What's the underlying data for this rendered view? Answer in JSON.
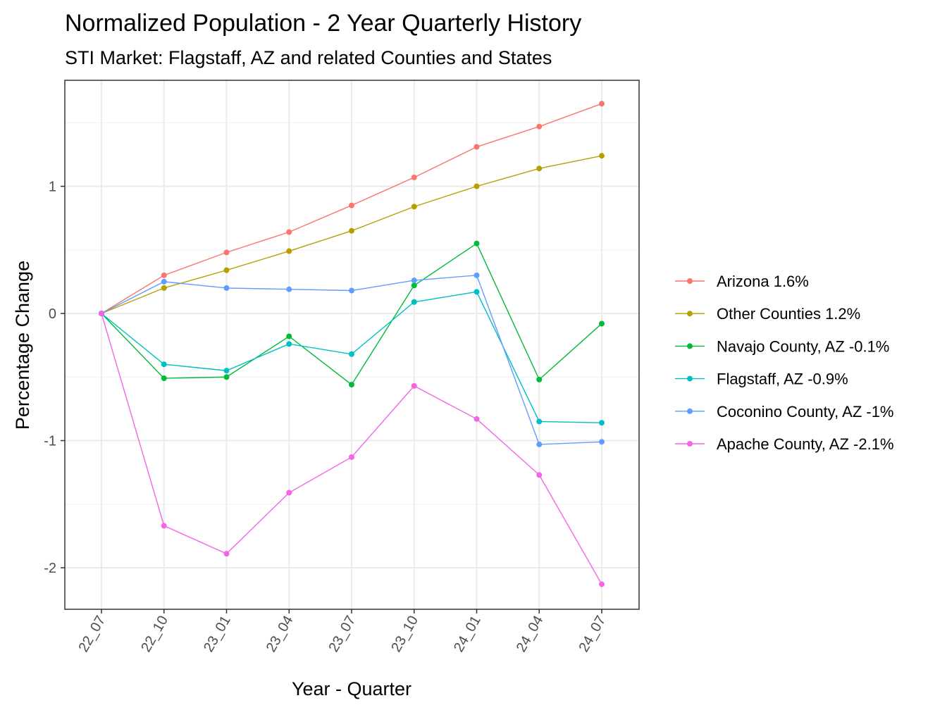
{
  "chart_data": {
    "type": "line",
    "title": "Normalized Population - 2 Year Quarterly History",
    "subtitle": "STI Market: Flagstaff, AZ and related Counties and States",
    "xlabel": "Year - Quarter",
    "ylabel": "Percentage Change",
    "categories": [
      "22_07",
      "22_10",
      "23_01",
      "23_04",
      "23_07",
      "23_10",
      "24_01",
      "24_04",
      "24_07"
    ],
    "yticks": [
      -2,
      -1,
      0,
      1
    ],
    "ylim": [
      -2.32,
      1.83
    ],
    "grid": true,
    "legend_position": "right",
    "series": [
      {
        "name": "Arizona 1.6%",
        "color": "#F8766D",
        "values": [
          0,
          0.3,
          0.48,
          0.64,
          0.85,
          1.07,
          1.31,
          1.47,
          1.65
        ]
      },
      {
        "name": "Other Counties 1.2%",
        "color": "#B79F00",
        "values": [
          0,
          0.2,
          0.34,
          0.49,
          0.65,
          0.84,
          1.0,
          1.14,
          1.24
        ]
      },
      {
        "name": "Navajo County, AZ -0.1%",
        "color": "#00BA38",
        "values": [
          0,
          -0.51,
          -0.5,
          -0.18,
          -0.56,
          0.22,
          0.55,
          -0.52,
          -0.08
        ]
      },
      {
        "name": "Flagstaff, AZ -0.9%",
        "color": "#00BFC4",
        "values": [
          0,
          -0.4,
          -0.45,
          -0.24,
          -0.32,
          0.09,
          0.17,
          -0.85,
          -0.86
        ]
      },
      {
        "name": "Coconino County, AZ -1%",
        "color": "#619CFF",
        "values": [
          0,
          0.25,
          0.2,
          0.19,
          0.18,
          0.26,
          0.3,
          -1.03,
          -1.01
        ]
      },
      {
        "name": "Apache County, AZ -2.1%",
        "color": "#F564E3",
        "values": [
          0,
          -1.67,
          -1.89,
          -1.41,
          -1.13,
          -0.57,
          -0.83,
          -1.27,
          -2.13
        ]
      }
    ]
  }
}
